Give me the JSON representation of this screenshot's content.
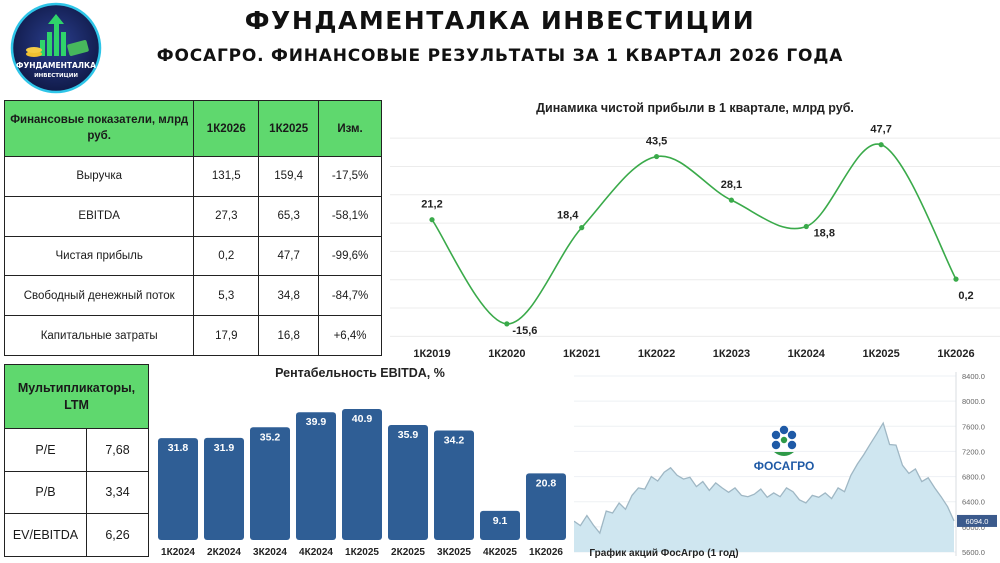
{
  "header": {
    "title": "ФУНДАМЕНТАЛКА ИНВЕСТИЦИИ",
    "subtitle": "ФОСАГРО. ФИНАНСОВЫЕ РЕЗУЛЬТАТЫ ЗА 1 КВАРТАЛ 2026 ГОДА",
    "logo_line1": "ФУНДАМЕНТАЛКА",
    "logo_line2": "ИНВЕСТИЦИИ"
  },
  "financials": {
    "header_col1": "Финансовые показатели, млрд руб.",
    "header_col2": "1К2026",
    "header_col3": "1К2025",
    "header_col4": "Изм.",
    "rows": [
      {
        "name": "Выручка",
        "v2026": "131,5",
        "v2025": "159,4",
        "chg": "-17,5%"
      },
      {
        "name": "EBITDA",
        "v2026": "27,3",
        "v2025": "65,3",
        "chg": "-58,1%"
      },
      {
        "name": "Чистая прибыль",
        "v2026": "0,2",
        "v2025": "47,7",
        "chg": "-99,6%"
      },
      {
        "name": "Свободный денежный поток",
        "v2026": "5,3",
        "v2025": "34,8",
        "chg": "-84,7%"
      },
      {
        "name": "Капитальные затраты",
        "v2026": "17,9",
        "v2025": "16,8",
        "chg": "+6,4%"
      }
    ]
  },
  "multiples": {
    "header": "Мультипликаторы, LTM",
    "rows": [
      {
        "name": "P/E",
        "value": "7,68"
      },
      {
        "name": "P/B",
        "value": "3,34"
      },
      {
        "name": "EV/EBITDA",
        "value": "6,26"
      }
    ]
  },
  "stock_panel": {
    "caption": "График акций ФосАгро (1 год)",
    "brand": "ФОСАГРО",
    "current_price_label": "6094.0",
    "y_ticks": [
      "8400.0",
      "8000.0",
      "7600.0",
      "7200.0",
      "6800.0",
      "6400.0",
      "6000.0",
      "5600.0"
    ]
  },
  "colors": {
    "accent_green": "#5fd86e",
    "line_green": "#3aaa4a",
    "bar_blue": "#2f5e95",
    "stock_fill": "#cfe6f0",
    "stock_line": "#9fb7c4",
    "brand_blue": "#1f5aa6"
  },
  "chart_data": [
    {
      "type": "line",
      "title": "Динамика чистой прибыли в 1 квартале, млрд руб.",
      "categories": [
        "1К2019",
        "1К2020",
        "1К2021",
        "1К2022",
        "1К2023",
        "1К2024",
        "1К2025",
        "1К2026"
      ],
      "values": [
        21.2,
        -15.6,
        18.4,
        43.5,
        28.1,
        18.8,
        47.7,
        0.2
      ],
      "value_labels": [
        "21,2",
        "-15,6",
        "18,4",
        "43,5",
        "28,1",
        "18,8",
        "47,7",
        "0,2"
      ],
      "grid": true,
      "legend": "none"
    },
    {
      "type": "bar",
      "title": "Рентабельность EBITDA, %",
      "categories": [
        "1К2024",
        "2К2024",
        "3К2024",
        "4К2024",
        "1К2025",
        "2К2025",
        "3К2025",
        "4К2025",
        "1К2026"
      ],
      "values": [
        31.8,
        31.9,
        35.2,
        39.9,
        40.9,
        35.9,
        34.2,
        9.1,
        20.8
      ],
      "value_labels": [
        "31.8",
        "31.9",
        "35.2",
        "39.9",
        "40.9",
        "35.9",
        "34.2",
        "9.1",
        "20.8"
      ],
      "grid": false,
      "legend": "none"
    },
    {
      "type": "area",
      "title": "График акций ФосАгро (1 год)",
      "ylim": [
        5600,
        8400
      ],
      "values": [
        6090,
        6020,
        6180,
        6030,
        5900,
        6250,
        6220,
        6380,
        6280,
        6500,
        6620,
        6600,
        6800,
        6730,
        6870,
        6940,
        6820,
        6760,
        6790,
        6640,
        6720,
        6580,
        6700,
        6620,
        6550,
        6620,
        6500,
        6480,
        6520,
        6600,
        6470,
        6540,
        6480,
        6620,
        6560,
        6430,
        6380,
        6500,
        6470,
        6540,
        6450,
        6620,
        6560,
        6820,
        7000,
        7150,
        7320,
        7480,
        7650,
        7310,
        7300,
        6980,
        6850,
        6920,
        6720,
        6780,
        6620,
        6480,
        6320,
        6094
      ],
      "grid": true,
      "legend": "none"
    }
  ]
}
